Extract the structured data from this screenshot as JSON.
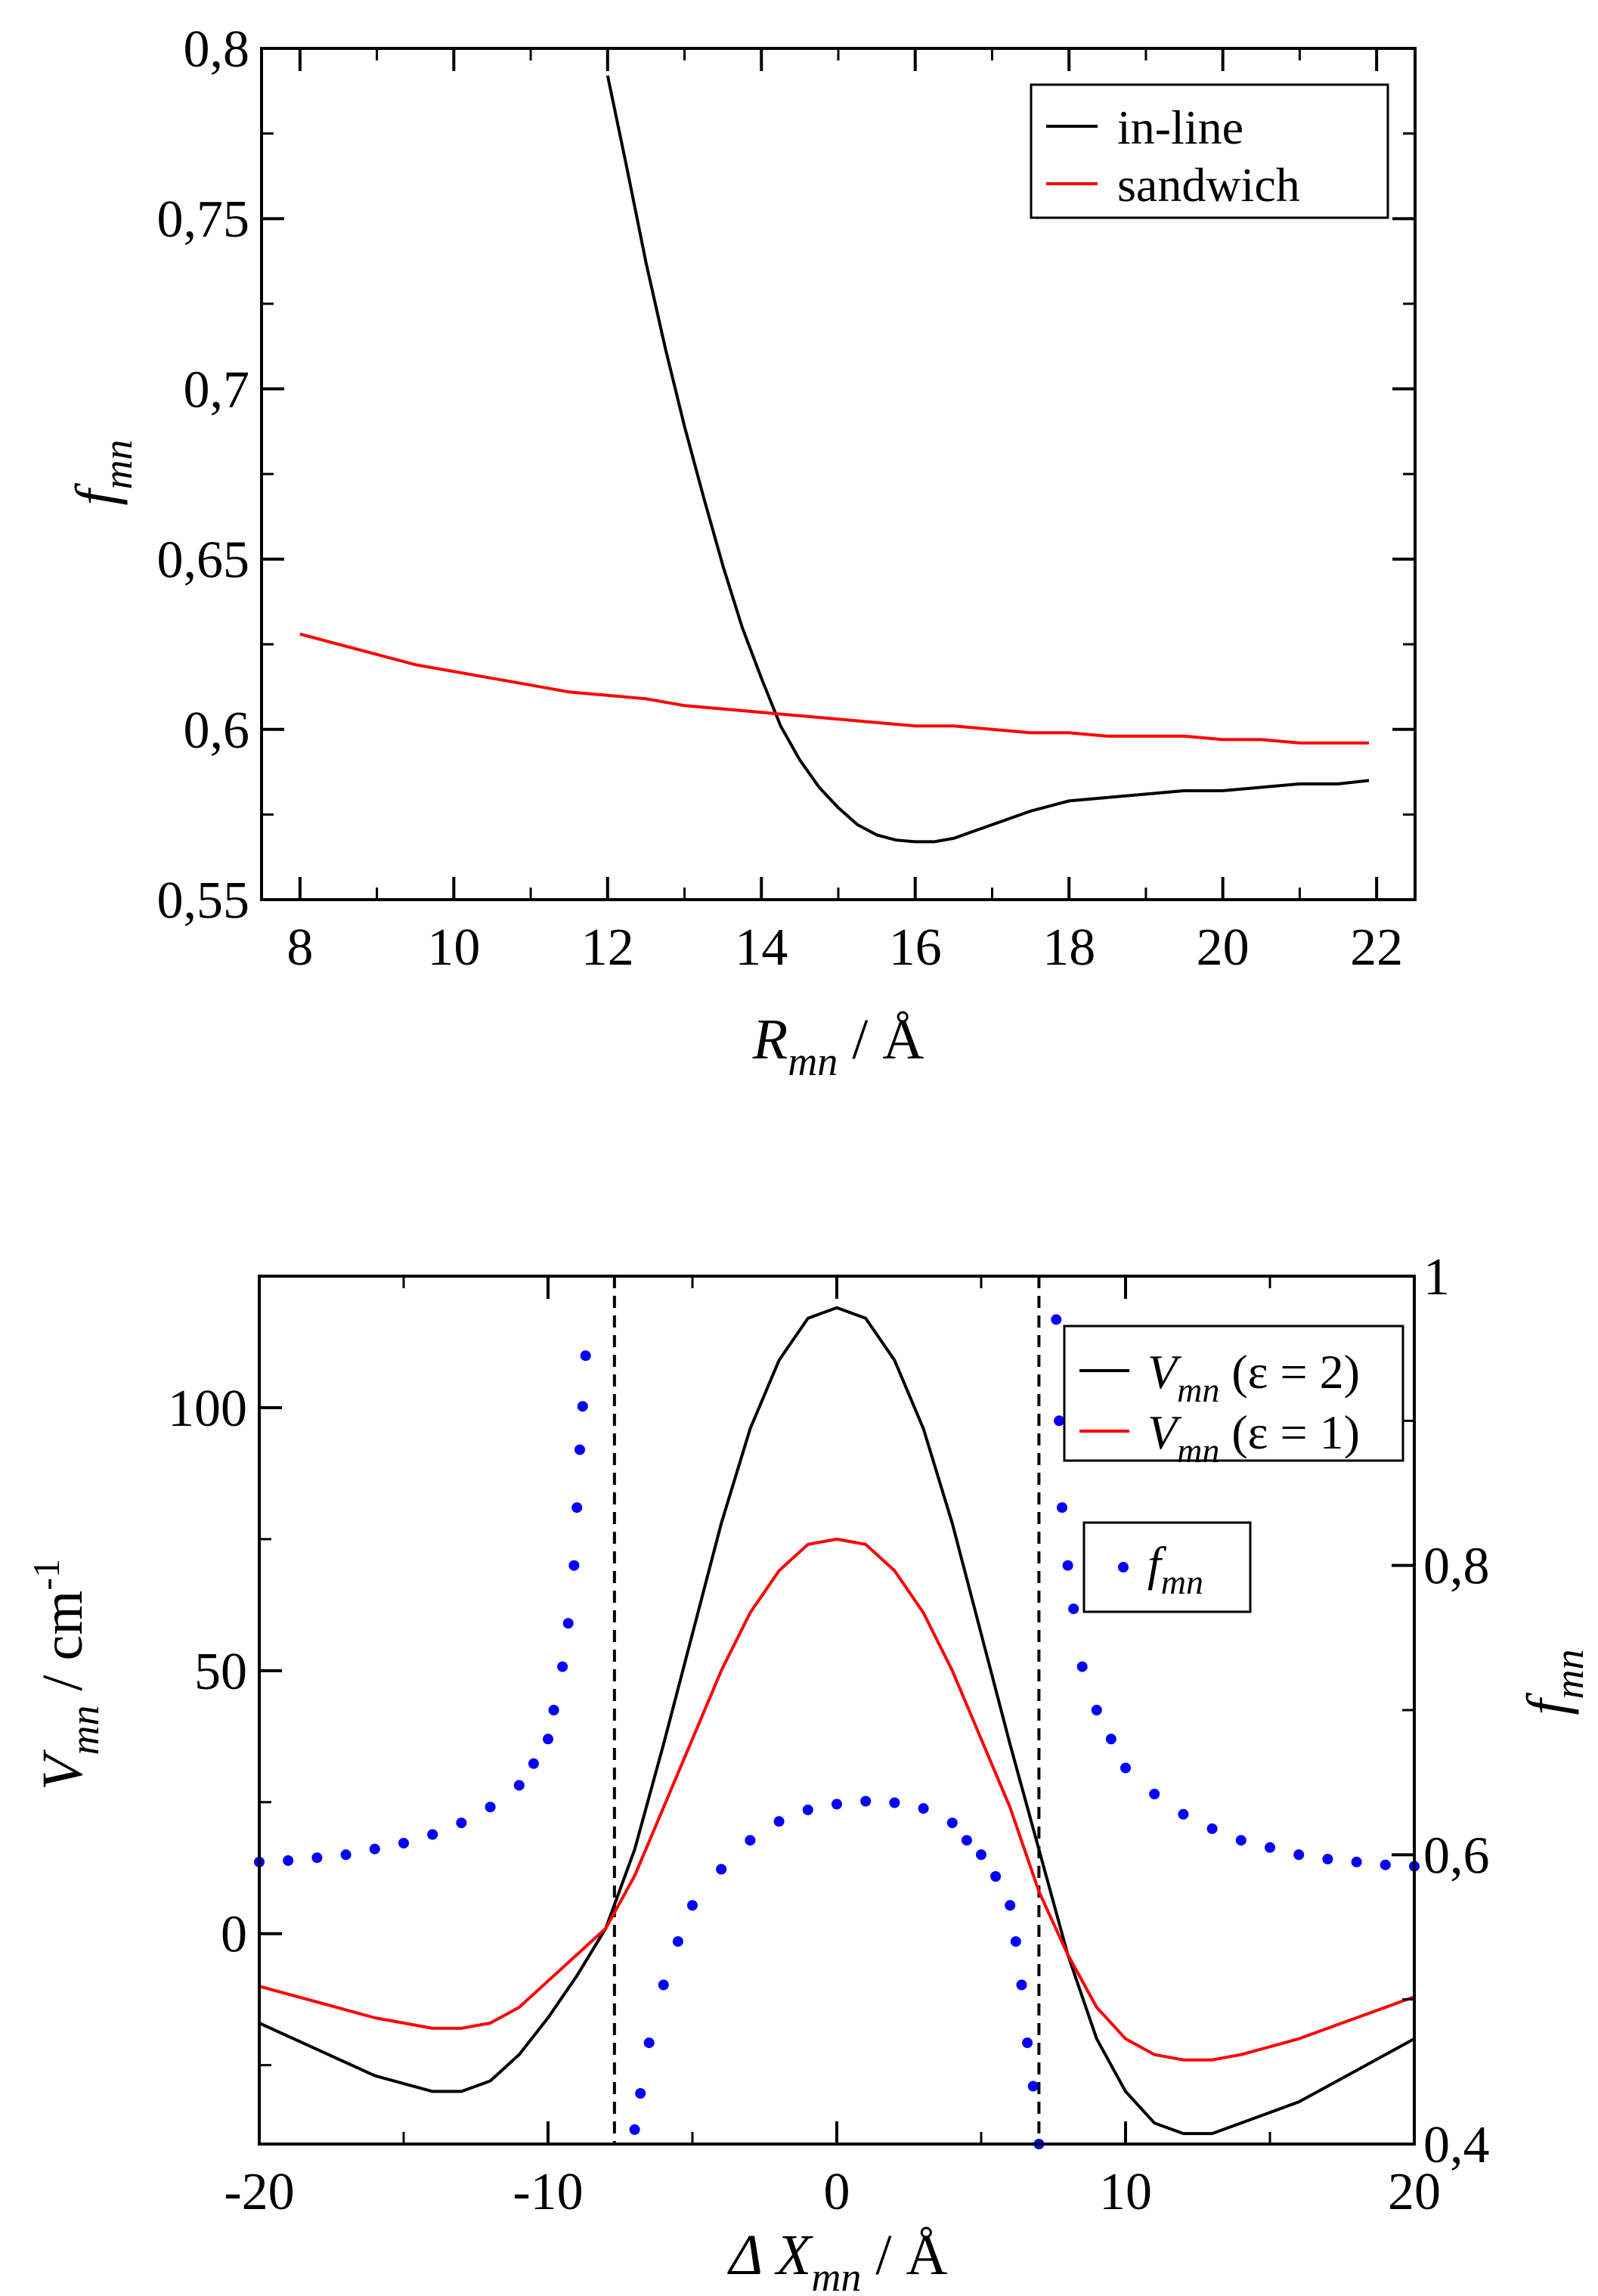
{
  "chart_data": [
    {
      "id": "top",
      "type": "line",
      "title": "",
      "xlabel": {
        "main": "R",
        "sub": "mn",
        "suffix": " / Å"
      },
      "ylabel": {
        "main": "f",
        "sub": "mn"
      },
      "xlim": [
        7.5,
        22.5
      ],
      "ylim": [
        0.55,
        0.8
      ],
      "grid": false,
      "legend_position": "top-right",
      "x_ticks": [
        8,
        10,
        12,
        14,
        16,
        18,
        20,
        22
      ],
      "x_tick_labels": [
        "8",
        "10",
        "12",
        "14",
        "16",
        "18",
        "20",
        "22"
      ],
      "y_ticks": [
        0.55,
        0.6,
        0.65,
        0.7,
        0.75,
        0.8
      ],
      "y_tick_labels": [
        "0,55",
        "0,6",
        "0,65",
        "0,7",
        "0,75",
        "0,8"
      ],
      "series": [
        {
          "name": "in-line",
          "color": "#000000",
          "x": [
            12.0,
            12.25,
            12.5,
            12.75,
            13.0,
            13.25,
            13.5,
            13.75,
            14.0,
            14.25,
            14.5,
            14.75,
            15.0,
            15.25,
            15.5,
            15.75,
            16.0,
            16.25,
            16.5,
            16.75,
            17.0,
            17.5,
            18.0,
            18.5,
            19.0,
            19.5,
            20.0,
            20.5,
            21.0,
            21.5,
            21.9
          ],
          "y": [
            0.792,
            0.765,
            0.737,
            0.712,
            0.689,
            0.668,
            0.648,
            0.63,
            0.615,
            0.601,
            0.591,
            0.583,
            0.577,
            0.572,
            0.569,
            0.5675,
            0.567,
            0.567,
            0.568,
            0.57,
            0.572,
            0.576,
            0.579,
            0.58,
            0.581,
            0.582,
            0.582,
            0.583,
            0.584,
            0.584,
            0.585
          ]
        },
        {
          "name": "sandwich",
          "color": "#ff0000",
          "x": [
            8.0,
            8.5,
            9.0,
            9.5,
            10.0,
            10.5,
            11.0,
            11.5,
            12.0,
            12.5,
            13.0,
            13.5,
            14.0,
            14.5,
            15.0,
            15.5,
            16.0,
            16.5,
            17.0,
            17.5,
            18.0,
            18.5,
            19.0,
            19.5,
            20.0,
            20.5,
            21.0,
            21.5,
            21.9
          ],
          "y": [
            0.628,
            0.625,
            0.622,
            0.619,
            0.617,
            0.615,
            0.613,
            0.611,
            0.61,
            0.609,
            0.607,
            0.606,
            0.605,
            0.604,
            0.603,
            0.602,
            0.601,
            0.601,
            0.6,
            0.599,
            0.599,
            0.598,
            0.598,
            0.598,
            0.597,
            0.597,
            0.596,
            0.596,
            0.596
          ]
        }
      ]
    },
    {
      "id": "bottom",
      "type": "line",
      "title": "",
      "xlabel": {
        "prefix": "Δ ",
        "main": "X",
        "sub": "mn",
        "suffix": " /  Å"
      },
      "ylabel": {
        "main": "V",
        "sub": "mn",
        "suffix": "  / cm",
        "sup": "-1"
      },
      "y2label": {
        "main": "f",
        "sub": "mn"
      },
      "xlim": [
        -20,
        20
      ],
      "ylim": [
        -40,
        125
      ],
      "y2lim": [
        0.4,
        1.0
      ],
      "grid": false,
      "legend_position": "top-right",
      "x_ticks": [
        -20,
        -10,
        0,
        10,
        20
      ],
      "x_tick_labels": [
        "-20",
        "-10",
        "0",
        "10",
        "20"
      ],
      "y_ticks": [
        0,
        50,
        100
      ],
      "y_tick_labels": [
        "0",
        "50",
        "100"
      ],
      "y2_ticks": [
        0.4,
        0.6,
        0.8,
        1.0
      ],
      "y2_tick_labels": [
        "0,4",
        "0,6",
        "0,8",
        "1"
      ],
      "vlines": [
        -7.7,
        7.0
      ],
      "series": [
        {
          "name": "V_mn (ε = 2)",
          "legend": {
            "main": "V",
            "sub": "mn",
            "rest": " (ε = 2)"
          },
          "color": "#000000",
          "axis": "left",
          "x": [
            -20,
            -18,
            -16,
            -14,
            -13,
            -12,
            -11,
            -10,
            -9,
            -8,
            -7,
            -6,
            -5,
            -4,
            -3,
            -2,
            -1,
            0,
            1,
            2,
            3,
            4,
            5,
            6,
            7,
            8,
            9,
            10,
            11,
            12,
            13,
            14,
            16,
            18,
            20
          ],
          "y": [
            -17,
            -22,
            -27,
            -30,
            -30,
            -28,
            -23,
            -16,
            -8,
            1,
            16,
            36,
            57,
            78,
            96,
            109,
            117,
            119,
            117,
            109,
            96,
            78,
            57,
            36,
            16,
            -4,
            -20,
            -30,
            -36,
            -38,
            -38,
            -36,
            -32,
            -26,
            -20
          ]
        },
        {
          "name": "V_mn (ε = 1)",
          "legend": {
            "main": "V",
            "sub": "mn",
            "rest": " (ε = 1)"
          },
          "color": "#ff0000",
          "axis": "left",
          "x": [
            -20,
            -18,
            -16,
            -14,
            -13,
            -12,
            -11,
            -10,
            -9,
            -8,
            -7,
            -6,
            -5,
            -4,
            -3,
            -2,
            -1,
            0,
            1,
            2,
            3,
            4,
            5,
            6,
            7,
            8,
            9,
            10,
            11,
            12,
            13,
            14,
            16,
            18,
            20
          ],
          "y": [
            -10,
            -13,
            -16,
            -18,
            -18,
            -17,
            -14,
            -9,
            -4,
            1,
            11,
            24,
            37,
            50,
            61,
            69,
            74,
            75,
            74,
            69,
            61,
            50,
            37,
            24,
            8,
            -4,
            -14,
            -20,
            -23,
            -24,
            -24,
            -23,
            -20,
            -16,
            -12
          ]
        },
        {
          "name": "f_mn",
          "legend": {
            "main": "f",
            "sub": "mn",
            "rest": ""
          },
          "color": "#0000ff",
          "axis": "right",
          "style": "markers",
          "x": [
            -20,
            -19,
            -18,
            -17,
            -16,
            -15,
            -14,
            -13,
            -12,
            -11,
            -10.5,
            -10,
            -9.8,
            -9.5,
            -9.3,
            -9.1,
            -9.0,
            -8.9,
            -8.8,
            -8.7,
            -7.0,
            -6.8,
            -6.5,
            -6.0,
            -5.5,
            -5.0,
            -4.0,
            -3.0,
            -2.0,
            -1.0,
            0.0,
            1.0,
            2.0,
            3.0,
            4.0,
            4.5,
            5.0,
            5.5,
            6.0,
            6.2,
            6.4,
            6.6,
            6.8,
            7.0,
            7.6,
            7.7,
            7.8,
            8.0,
            8.2,
            8.5,
            9.0,
            9.5,
            10.0,
            11.0,
            12.0,
            13.0,
            14.0,
            15.0,
            16.0,
            17.0,
            18.0,
            19.0,
            20.0
          ],
          "y": [
            0.595,
            0.596,
            0.598,
            0.6,
            0.604,
            0.608,
            0.614,
            0.622,
            0.633,
            0.648,
            0.663,
            0.68,
            0.7,
            0.73,
            0.76,
            0.8,
            0.84,
            0.88,
            0.91,
            0.945,
            0.41,
            0.435,
            0.47,
            0.51,
            0.54,
            0.565,
            0.59,
            0.61,
            0.623,
            0.631,
            0.635,
            0.637,
            0.636,
            0.632,
            0.622,
            0.61,
            0.6,
            0.585,
            0.565,
            0.54,
            0.51,
            0.47,
            0.44,
            0.4,
            0.97,
            0.9,
            0.84,
            0.8,
            0.77,
            0.73,
            0.7,
            0.68,
            0.66,
            0.642,
            0.628,
            0.618,
            0.61,
            0.605,
            0.6,
            0.597,
            0.595,
            0.593,
            0.592
          ]
        }
      ]
    }
  ]
}
